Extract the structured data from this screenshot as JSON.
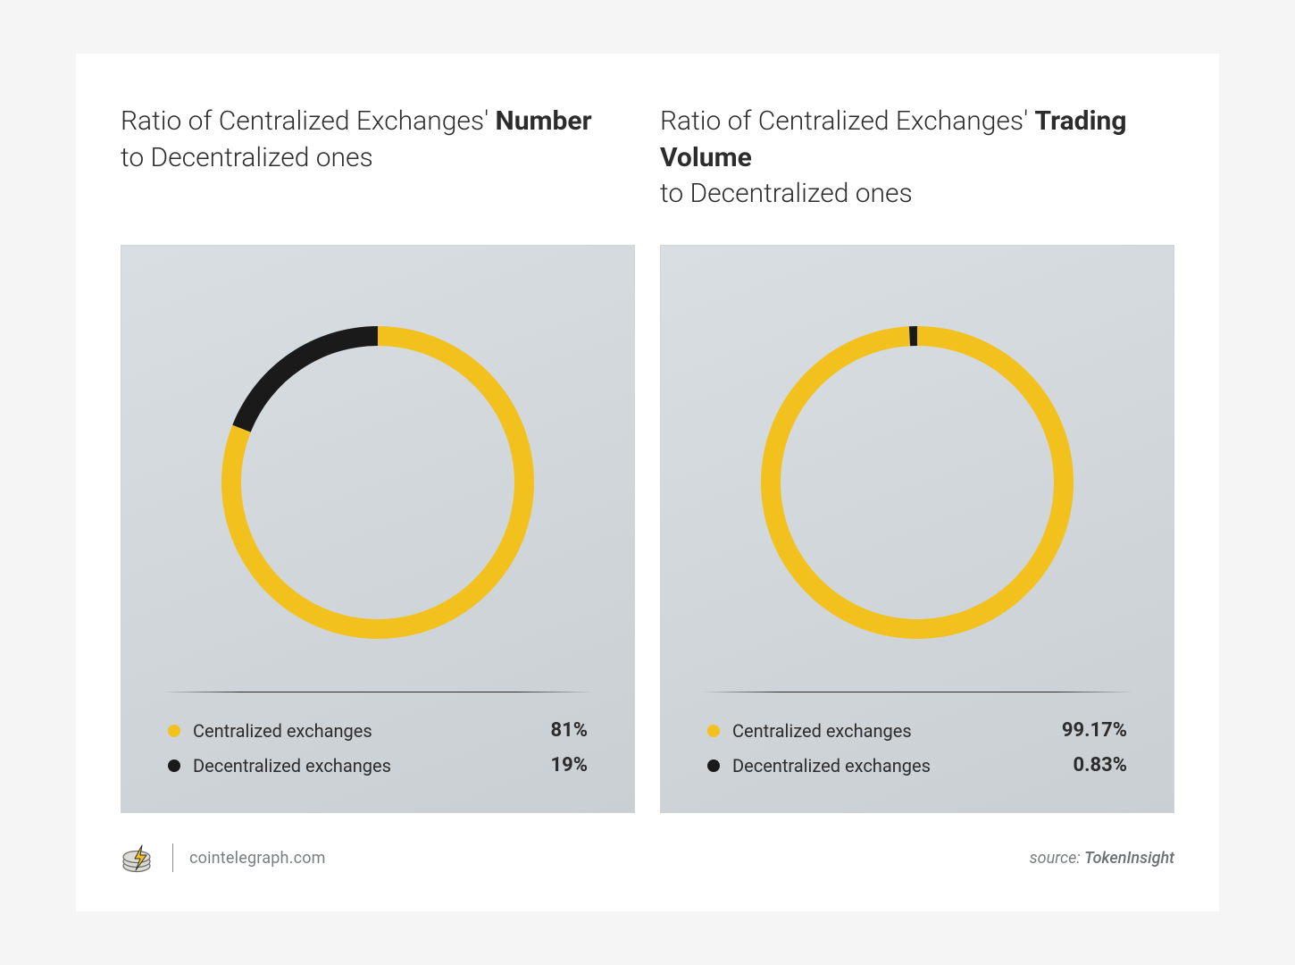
{
  "colors": {
    "page_bg": "#ffffff",
    "card_bg_from": "#d8dee2",
    "card_bg_to": "#c9cfd3",
    "text": "#2c2c2c",
    "muted": "#7a7d80",
    "primary": "#f2c11d",
    "secondary": "#1a1a1a",
    "divider": "#2c2c2c"
  },
  "typography": {
    "title_fontsize": 30,
    "legend_label_fontsize": 20,
    "legend_value_fontsize": 22,
    "footer_fontsize": 18
  },
  "donut": {
    "outer_radius": 175,
    "ring_width": 22,
    "start_angle_deg": 0
  },
  "panels": [
    {
      "id": "number",
      "type": "donut",
      "title_pre": "Ratio of Centralized Exchanges' ",
      "title_bold": "Number",
      "title_post": " to Decentralized ones",
      "series": [
        {
          "label": "Centralized exchanges",
          "value": 81,
          "value_text": "81%",
          "color": "#f2c11d"
        },
        {
          "label": "Decentralized exchanges",
          "value": 19,
          "value_text": "19%",
          "color": "#1a1a1a"
        }
      ]
    },
    {
      "id": "volume",
      "type": "donut",
      "title_pre": "Ratio of Centralized Exchanges' ",
      "title_bold": "Trading Volume",
      "title_post": " to Decentralized ones",
      "series": [
        {
          "label": "Centralized exchanges",
          "value": 99.17,
          "value_text": "99.17%",
          "color": "#f2c11d"
        },
        {
          "label": "Decentralized exchanges",
          "value": 0.83,
          "value_text": "0.83%",
          "color": "#1a1a1a"
        }
      ]
    }
  ],
  "footer": {
    "brand_text": "cointelegraph.com",
    "source_prefix": "source: ",
    "source_name": "TokenInsight",
    "logo": {
      "coin_fill": "#dddcd8",
      "coin_stroke": "#6a6a66",
      "bolt_fill": "#f2c11d",
      "bolt_stroke": "#2c2c2c"
    }
  }
}
